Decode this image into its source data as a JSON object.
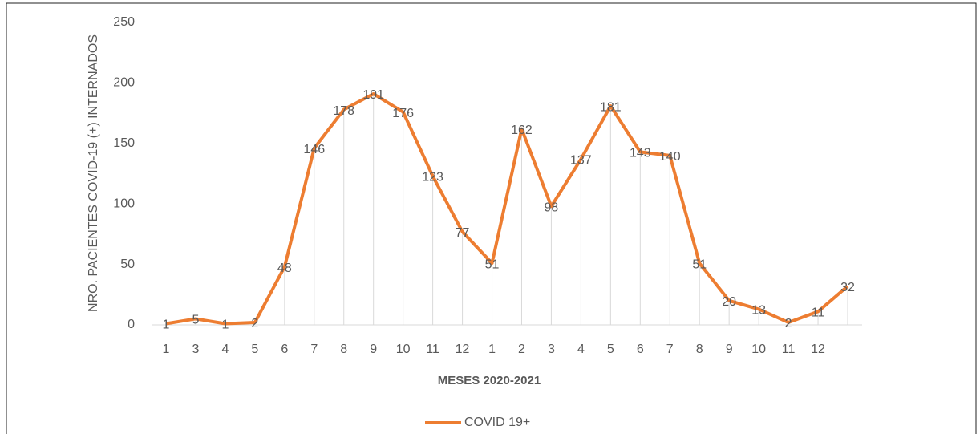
{
  "chart_data": {
    "type": "line",
    "x_label": "MESES 2020-2021",
    "y_label": "NRO. PACIENTES COVID-19 (+) INTERNADOS",
    "categories": [
      "1",
      "3",
      "4",
      "5",
      "6",
      "7",
      "8",
      "9",
      "10",
      "11",
      "12",
      "1",
      "2",
      "3",
      "4",
      "5",
      "6",
      "7",
      "8",
      "9",
      "10",
      "11",
      "12",
      null
    ],
    "series": [
      {
        "name": "COVID 19+",
        "color": "#ED7D31",
        "values": [
          1,
          5,
          1,
          2,
          48,
          146,
          178,
          191,
          176,
          123,
          77,
          51,
          162,
          98,
          137,
          181,
          143,
          140,
          51,
          20,
          13,
          2,
          11,
          32
        ]
      }
    ],
    "ylim": [
      0,
      250
    ],
    "yticks": [
      0,
      50,
      100,
      150,
      200,
      250
    ],
    "drop_lines": true,
    "legend": "bottom"
  }
}
